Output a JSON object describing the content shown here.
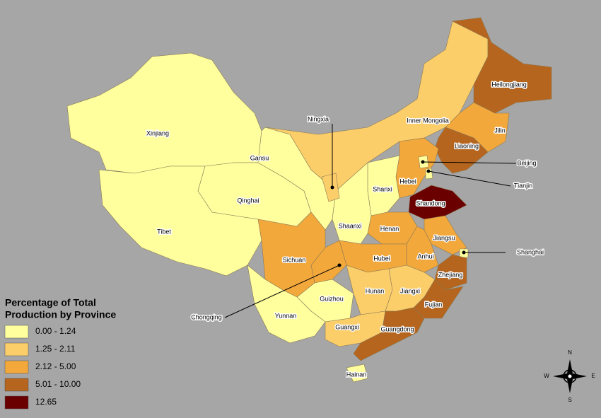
{
  "provinces": [
    {
      "label": "Xinjiang",
      "color": "#ffff9e"
    },
    {
      "label": "Tibet",
      "color": "#ffff9e"
    },
    {
      "label": "Qinghai",
      "color": "#ffff9e"
    },
    {
      "label": "Gansu",
      "color": "#ffff9e"
    },
    {
      "label": "Inner Mongolia",
      "color": "#fcce6a"
    },
    {
      "label": "Heilongjiang",
      "color": "#b5651d"
    },
    {
      "label": "Jilin",
      "color": "#f3a83b"
    },
    {
      "label": "Liaoning",
      "color": "#b5651d"
    },
    {
      "label": "Hebei",
      "color": "#f3a83b"
    },
    {
      "label": "Beijing",
      "color": "#ffff9e"
    },
    {
      "label": "Tianjin",
      "color": "#ffff9e"
    },
    {
      "label": "Shanxi",
      "color": "#ffff9e"
    },
    {
      "label": "Shandong",
      "color": "#6b0000"
    },
    {
      "label": "Henan",
      "color": "#f3a83b"
    },
    {
      "label": "Shaanxi",
      "color": "#ffff9e"
    },
    {
      "label": "Ningxia",
      "color": "#fcce6a"
    },
    {
      "label": "Jiangsu",
      "color": "#f3a83b"
    },
    {
      "label": "Anhui",
      "color": "#f3a83b"
    },
    {
      "label": "Shanghai",
      "color": "#ffff9e"
    },
    {
      "label": "Zhejiang",
      "color": "#b5651d"
    },
    {
      "label": "Fujian",
      "color": "#b5651d"
    },
    {
      "label": "Hubei",
      "color": "#f3a83b"
    },
    {
      "label": "Chongqing",
      "color": "#f3a83b"
    },
    {
      "label": "Sichuan",
      "color": "#f3a83b"
    },
    {
      "label": "Hunan",
      "color": "#fcce6a"
    },
    {
      "label": "Jiangxi",
      "color": "#fcce6a"
    },
    {
      "label": "Guizhou",
      "color": "#ffff9e"
    },
    {
      "label": "Yunnan",
      "color": "#ffff9e"
    },
    {
      "label": "Guangxi",
      "color": "#fcce6a"
    },
    {
      "label": "Guangdong",
      "color": "#b5651d"
    },
    {
      "label": "Hainan",
      "color": "#ffff9e"
    }
  ],
  "legend": {
    "title": [
      "Percentage of Total",
      "Production by Province"
    ],
    "items": [
      {
        "label": "0.00 - 1.24",
        "color": "#ffff9e"
      },
      {
        "label": "1.25 - 2.11",
        "color": "#fcce6a"
      },
      {
        "label": "2.12 - 5.00",
        "color": "#f3a83b"
      },
      {
        "label": "5.01 - 10.00",
        "color": "#b5651d"
      },
      {
        "label": "12.65",
        "color": "#6b0000"
      }
    ]
  },
  "compass": {
    "north": "N",
    "south": "S",
    "east": "E",
    "west": "W"
  }
}
